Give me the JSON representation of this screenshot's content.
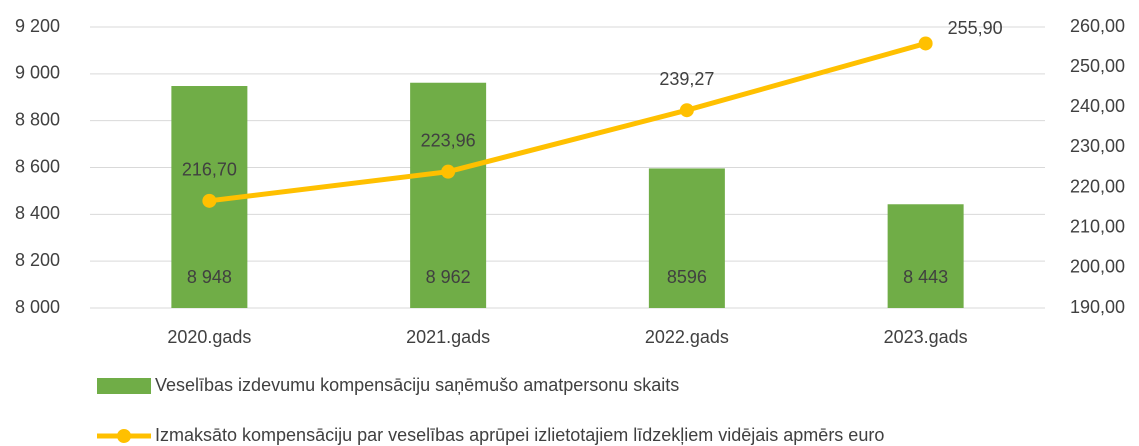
{
  "chart_data": {
    "type": "combo",
    "categories": [
      "2020.gads",
      "2021.gads",
      "2022.gads",
      "2023.gads"
    ],
    "series": [
      {
        "name": "Veselības izdevumu kompensāciju saņēmušo amatpersonu skaits",
        "type": "bar",
        "color": "#70ad47",
        "axis": "y",
        "values": [
          8948,
          8962,
          8596,
          8443
        ],
        "value_labels": [
          "8 948",
          "8 962",
          "8596",
          "8 443"
        ]
      },
      {
        "name": "Izmaksāto kompensāciju par veselības aprūpei  izlietotajiem līdzekļiem vidējais apmērs euro",
        "type": "line",
        "color": "#ffc000",
        "axis": "y2",
        "values": [
          216.7,
          223.96,
          239.27,
          255.9
        ],
        "value_labels": [
          "216,70",
          "223,96",
          "239,27",
          "255,90"
        ]
      }
    ],
    "ylim": [
      8000,
      9200
    ],
    "yticks": [
      {
        "value": 8000,
        "label": "8 000"
      },
      {
        "value": 8200,
        "label": "8 200"
      },
      {
        "value": 8400,
        "label": "8 400"
      },
      {
        "value": 8600,
        "label": "8 600"
      },
      {
        "value": 8800,
        "label": "8 800"
      },
      {
        "value": 9000,
        "label": "9 000"
      },
      {
        "value": 9200,
        "label": "9 200"
      }
    ],
    "y2lim": [
      190,
      260
    ],
    "y2ticks": [
      {
        "value": 190,
        "label": "190,00"
      },
      {
        "value": 200,
        "label": "200,00"
      },
      {
        "value": 210,
        "label": "210,00"
      },
      {
        "value": 220,
        "label": "220,00"
      },
      {
        "value": 230,
        "label": "230,00"
      },
      {
        "value": 240,
        "label": "240,00"
      },
      {
        "value": 250,
        "label": "250,00"
      },
      {
        "value": 260,
        "label": "260,00"
      }
    ],
    "grid": true
  }
}
